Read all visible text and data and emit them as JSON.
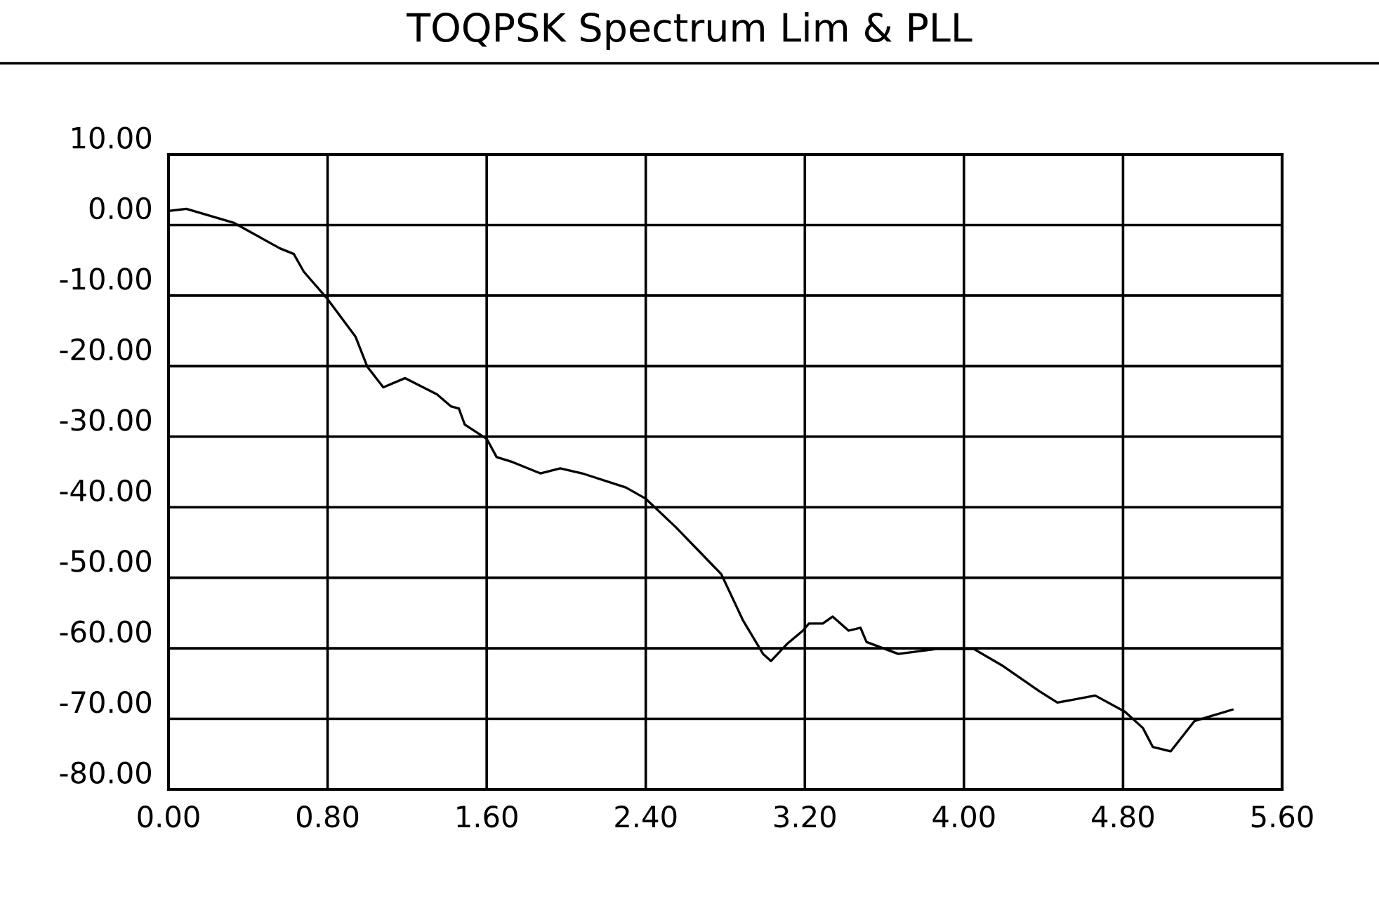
{
  "chart_data": {
    "type": "line",
    "title": "TOQPSK Spectrum Lim & PLL",
    "x": [
      0,
      0.09,
      0.33,
      0.56,
      0.63,
      0.68,
      0.8,
      0.94,
      1.0,
      1.08,
      1.19,
      1.35,
      1.42,
      1.46,
      1.49,
      1.6,
      1.65,
      1.73,
      1.87,
      1.97,
      2.08,
      2.3,
      2.4,
      2.55,
      2.66,
      2.78,
      2.89,
      2.99,
      3.03,
      3.11,
      3.19,
      3.22,
      3.29,
      3.34,
      3.42,
      3.48,
      3.51,
      3.67,
      3.86,
      4.05,
      4.19,
      4.38,
      4.47,
      4.66,
      4.81,
      4.9,
      4.95,
      5.04,
      5.16,
      5.35
    ],
    "series": [
      {
        "color": "#000000",
        "values": [
          2.0,
          2.3,
          0.3,
          -3.3,
          -4.1,
          -6.6,
          -10.5,
          -15.8,
          -20.1,
          -23,
          -21.7,
          -24,
          -25.7,
          -26,
          -28.3,
          -30.3,
          -32.9,
          -33.6,
          -35.2,
          -34.5,
          -35.2,
          -37.2,
          -38.8,
          -42.8,
          -46,
          -49.5,
          -56.1,
          -60.8,
          -61.8,
          -59.4,
          -57.5,
          -56.5,
          -56.5,
          -55.5,
          -57.5,
          -57.1,
          -59.1,
          -60.8,
          -60.1,
          -60.1,
          -62.4,
          -66.1,
          -67.7,
          -66.7,
          -69.0,
          -71.3,
          -74.0,
          -74.6,
          -70.3,
          -68.7
        ]
      }
    ],
    "xlim": [
      0,
      5.6
    ],
    "xticks": [
      {
        "value": 0,
        "label": "0.00"
      },
      {
        "value": 0.8,
        "label": "0.80"
      },
      {
        "value": 1.6,
        "label": "1.60"
      },
      {
        "value": 2.4,
        "label": "2.40"
      },
      {
        "value": 3.2,
        "label": "3.20"
      },
      {
        "value": 4.0,
        "label": "4.00"
      },
      {
        "value": 4.8,
        "label": "4.80"
      },
      {
        "value": 5.6,
        "label": "5.60"
      }
    ],
    "ylim": [
      -80,
      10
    ],
    "yticks": [
      {
        "value": 10,
        "label": "10.00"
      },
      {
        "value": 0,
        "label": "0.00"
      },
      {
        "value": -10,
        "label": "-10.00"
      },
      {
        "value": -20,
        "label": "-20.00"
      },
      {
        "value": -30,
        "label": "-30.00"
      },
      {
        "value": -40,
        "label": "-40.00"
      },
      {
        "value": -50,
        "label": "-50.00"
      },
      {
        "value": -60,
        "label": "-60.00"
      },
      {
        "value": -70,
        "label": "-70.00"
      },
      {
        "value": -80,
        "label": "-80.00"
      }
    ],
    "grid": true,
    "marker": "none",
    "line_style": "solid"
  }
}
